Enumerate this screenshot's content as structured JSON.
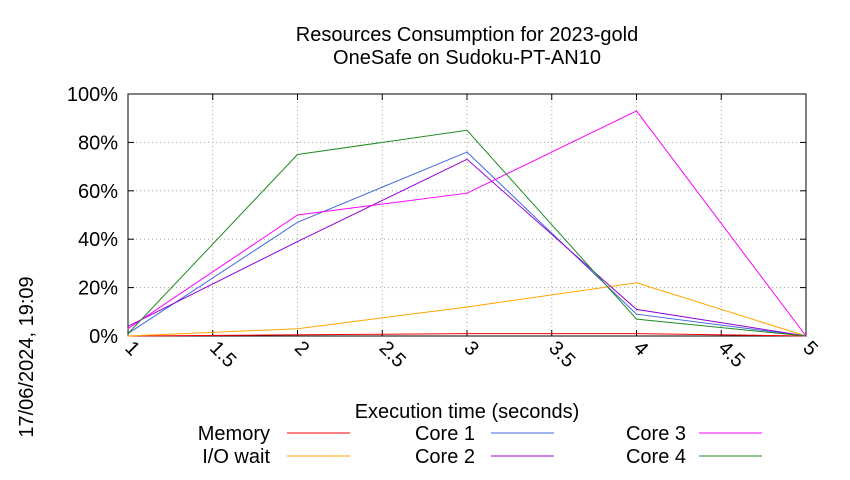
{
  "chart_data": {
    "type": "line",
    "title": [
      "Resources Consumption for 2023-gold",
      "OneSafe on Sudoku-PT-AN10"
    ],
    "xlabel": "Execution time (seconds)",
    "ylabel": "",
    "side_label": "17/06/2024, 19:09",
    "xlim": [
      1,
      5
    ],
    "ylim": [
      0,
      100
    ],
    "x_ticks": [
      1,
      1.5,
      2,
      2.5,
      3,
      3.5,
      4,
      4.5,
      5
    ],
    "x_tick_labels": [
      "1",
      "1.5",
      "2",
      "2.5",
      "3",
      "3.5",
      "4",
      "4.5",
      "5"
    ],
    "y_ticks": [
      0,
      20,
      40,
      60,
      80,
      100
    ],
    "y_tick_labels": [
      "0%",
      "20%",
      "40%",
      "60%",
      "80%",
      "100%"
    ],
    "grid": true,
    "legend_position": "bottom",
    "series": [
      {
        "name": "Memory",
        "color": "#ff0000",
        "x": [
          1,
          2,
          3,
          4,
          5
        ],
        "values": [
          0,
          0.5,
          1,
          1,
          0
        ]
      },
      {
        "name": "I/O wait",
        "color": "#ffa500",
        "x": [
          1,
          2,
          3,
          4,
          5
        ],
        "values": [
          0,
          3,
          12,
          22,
          0
        ]
      },
      {
        "name": "Core 1",
        "color": "#4169e1",
        "x": [
          1,
          2,
          3,
          4,
          5
        ],
        "values": [
          1,
          47,
          76,
          9,
          0
        ]
      },
      {
        "name": "Core 2",
        "color": "#9400d3",
        "x": [
          1,
          2,
          3,
          4,
          5
        ],
        "values": [
          4,
          39,
          73,
          11,
          0
        ]
      },
      {
        "name": "Core 3",
        "color": "#ff00ff",
        "x": [
          1,
          2,
          3,
          4,
          5
        ],
        "values": [
          3,
          50,
          59,
          93,
          0
        ]
      },
      {
        "name": "Core 4",
        "color": "#228b22",
        "x": [
          1,
          2,
          3,
          4,
          5
        ],
        "values": [
          1,
          75,
          85,
          7,
          0
        ]
      }
    ]
  }
}
